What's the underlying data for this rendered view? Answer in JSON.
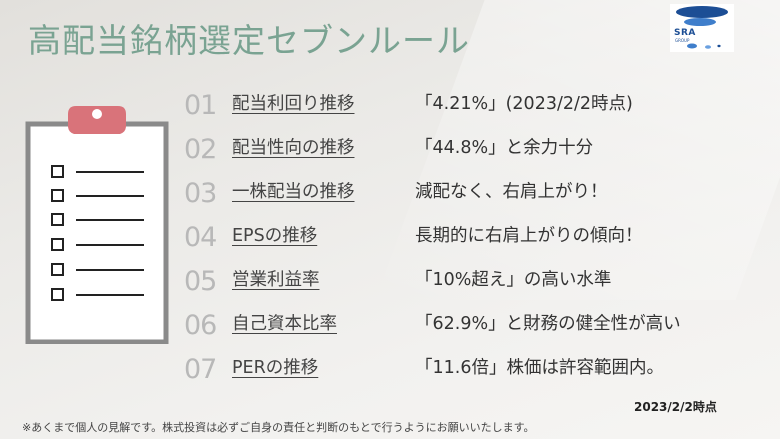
{
  "title": "高配当銘柄選定セブンルール",
  "logo": {
    "text": "SRA",
    "subtext": "GROUP"
  },
  "rules": [
    {
      "num": "01",
      "item": "配当利回り推移",
      "desc": "「4.21%」(2023/2/2時点)"
    },
    {
      "num": "02",
      "item": "配当性向の推移",
      "desc": "「44.8%」と余力十分"
    },
    {
      "num": "03",
      "item": "一株配当の推移",
      "desc": "減配なく、右肩上がり！"
    },
    {
      "num": "04",
      "item": "EPSの推移",
      "desc": "長期的に右肩上がりの傾向！"
    },
    {
      "num": "05",
      "item": "営業利益率",
      "desc": "「10%超え」の高い水準"
    },
    {
      "num": "06",
      "item": "自己資本比率",
      "desc": "「62.9%」と財務の健全性が高い"
    },
    {
      "num": "07",
      "item": "PERの推移",
      "desc": "「11.6倍」株価は許容範囲内。"
    }
  ],
  "date_note": "2023/2/2時点",
  "disclaimer": "※あくまで個人の見解です。株式投資は必ずご自身の責任と判断のもとで行うようにお願いいたします。",
  "colors": {
    "title": "#7aa392",
    "number": "#b8b8b8",
    "clipboard_clip": "#d9737a",
    "logo_blue": "#1c4e95"
  },
  "icons": [
    "clipboard-checklist-icon",
    "sra-logo-icon"
  ]
}
